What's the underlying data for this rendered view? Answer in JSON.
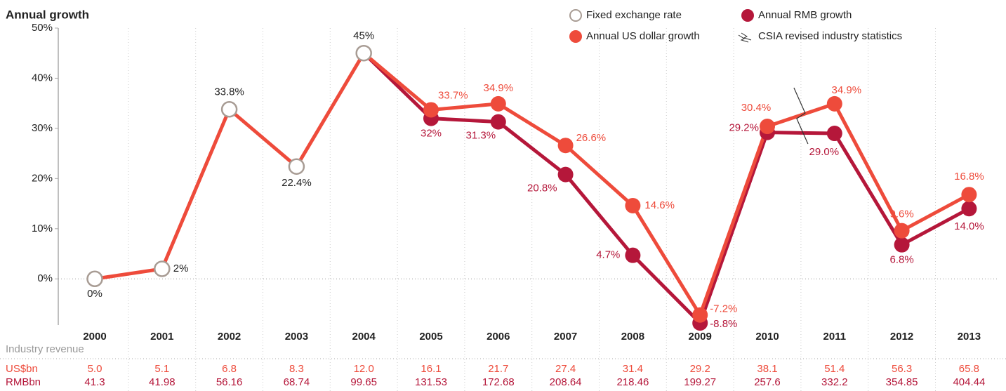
{
  "chart_data": {
    "type": "line",
    "title": "Annual growth",
    "categories": [
      "2000",
      "2001",
      "2002",
      "2003",
      "2004",
      "2005",
      "2006",
      "2007",
      "2008",
      "2009",
      "2010",
      "2011",
      "2012",
      "2013"
    ],
    "series": [
      {
        "name": "Fixed exchange rate",
        "color": "#a89c94",
        "marker": "hollow",
        "values": [
          0,
          2,
          33.8,
          22.4,
          45,
          null,
          null,
          null,
          null,
          null,
          null,
          null,
          null,
          null
        ],
        "value_labels": [
          "0%",
          "2%",
          "33.8%",
          "22.4%",
          "45%",
          null,
          null,
          null,
          null,
          null,
          null,
          null,
          null,
          null
        ]
      },
      {
        "name": "Annual RMB growth",
        "color": "#b5173a",
        "marker": "filled",
        "values": [
          null,
          null,
          null,
          null,
          45,
          32,
          31.3,
          20.8,
          4.7,
          -8.8,
          29.2,
          29.0,
          6.8,
          14.0
        ],
        "value_labels": [
          null,
          null,
          null,
          null,
          null,
          "32%",
          "31.3%",
          "20.8%",
          "4.7%",
          "-8.8%",
          "29.2%",
          "29.0%",
          "6.8%",
          "14.0%"
        ]
      },
      {
        "name": "Annual US dollar growth",
        "color": "#ee4b3b",
        "marker": "filled",
        "values": [
          0,
          2,
          33.8,
          22.4,
          45,
          33.7,
          34.9,
          26.6,
          14.6,
          -7.2,
          30.4,
          34.9,
          9.6,
          16.8
        ],
        "value_labels": [
          null,
          null,
          null,
          null,
          null,
          "33.7%",
          "34.9%",
          "26.6%",
          "14.6%",
          "-7.2%",
          "30.4%",
          "34.9%",
          "9.6%",
          "16.8%"
        ]
      }
    ],
    "break_legend": "CSIA revised industry statistics",
    "ylim": [
      -9.2,
      50
    ],
    "yticks": [
      {
        "value": 0,
        "label": "0%"
      },
      {
        "value": 10,
        "label": "10%"
      },
      {
        "value": 20,
        "label": "20%"
      },
      {
        "value": 30,
        "label": "30%"
      },
      {
        "value": 40,
        "label": "40%"
      },
      {
        "value": 50,
        "label": "50%"
      }
    ],
    "revenue": {
      "title": "Industry revenue",
      "rows": [
        {
          "name": "US$bn",
          "color": "#ee4b3b",
          "values": [
            "5.0",
            "5.1",
            "6.8",
            "8.3",
            "12.0",
            "16.1",
            "21.7",
            "27.4",
            "31.4",
            "29.2",
            "38.1",
            "51.4",
            "56.3",
            "65.8"
          ]
        },
        {
          "name": "RMBbn",
          "color": "#b5173a",
          "values": [
            "41.3",
            "41.98",
            "56.16",
            "68.74",
            "99.65",
            "131.53",
            "172.68",
            "208.64",
            "218.46",
            "199.27",
            "257.6",
            "332.2",
            "354.85",
            "404.44"
          ]
        }
      ]
    }
  }
}
